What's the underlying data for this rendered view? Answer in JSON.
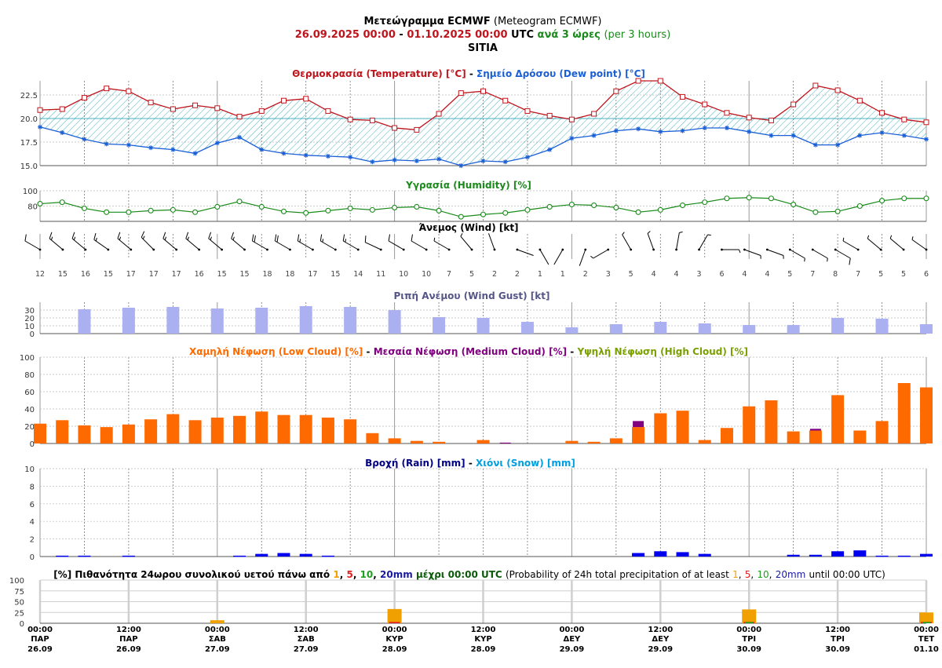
{
  "header": {
    "line1_bold": "Μετεώγραμμα ECMWF",
    "line1_rest": "(Meteogram ECMWF)",
    "date_start": "26.09.2025 00:00",
    "date_sep": "-",
    "date_end": "01.10.2025 00:00",
    "utc": "UTC",
    "step_gr": "ανά 3 ώρες",
    "step_en": "(per 3 hours)",
    "location": "SITIA"
  },
  "colors": {
    "temperature": "#c0141c",
    "dewpoint": "#1a5fd6",
    "humidity": "#1a8a1a",
    "gust": "#aab0f0",
    "low_cloud": "#ff6a00",
    "medium_cloud": "#800080",
    "high_cloud": "#7aa000",
    "rain": "#0000ee",
    "snow": "#00a0e0",
    "prob1": "#f0a000",
    "prob5": "#e02020",
    "prob10": "#20a020",
    "prob20": "#1a1aa0",
    "hatch": "#1aa0b0"
  },
  "panels": {
    "temp": {
      "title_a": "Θερμοκρασία (Temperature) [°C]",
      "sep": "-",
      "title_b": "Σημείο Δρόσου (Dew point) [°C]"
    },
    "humidity": {
      "title": "Υγρασία (Humidity) [%]"
    },
    "wind": {
      "title": "Άνεμος (Wind) [kt]"
    },
    "gust": {
      "title": "Ριπή Ανέμου (Wind Gust) [kt]"
    },
    "cloud": {
      "title_low": "Χαμηλή Νέφωση (Low Cloud) [%]",
      "sep1": "-",
      "title_med": "Μεσαία Νέφωση (Medium Cloud) [%]",
      "sep2": "-",
      "title_high": "Υψηλή Νέφωση (High Cloud) [%]"
    },
    "precip": {
      "title_rain": "Βροχή (Rain) [mm]",
      "sep": "-",
      "title_snow": "Χιόνι (Snow) [mm]"
    },
    "prob": {
      "p0": "[%] Πιθανότητα 24ωρου συνολικού υετού πάνω από",
      "v1": "1",
      "c1": ",",
      "v5": "5",
      "c2": ",",
      "v10": "10",
      "c3": ",",
      "v20": "20mm",
      "p1": "μέχρι 00:00 UTC",
      "p2": "(Probability of 24h total precipitation of at least",
      "e1": "1",
      "ec1": ",",
      "e5": "5",
      "ec2": ",",
      "e10": "10",
      "ec3": ",",
      "e20": "20mm",
      "p3": "until 00:00 UTC)"
    }
  },
  "chart_data": {
    "type": "line",
    "x_times": [
      "26.09 00",
      "26.09 03",
      "26.09 06",
      "26.09 09",
      "26.09 12",
      "26.09 15",
      "26.09 18",
      "26.09 21",
      "27.09 00",
      "27.09 03",
      "27.09 06",
      "27.09 09",
      "27.09 12",
      "27.09 15",
      "27.09 18",
      "27.09 21",
      "28.09 00",
      "28.09 03",
      "28.09 06",
      "28.09 09",
      "28.09 12",
      "28.09 15",
      "28.09 18",
      "28.09 21",
      "29.09 00",
      "29.09 03",
      "29.09 06",
      "29.09 09",
      "29.09 12",
      "29.09 15",
      "29.09 18",
      "29.09 21",
      "30.09 00",
      "30.09 03",
      "30.09 06",
      "30.09 09",
      "30.09 12",
      "30.09 15",
      "30.09 18",
      "30.09 21",
      "01.10 00"
    ],
    "temperature": {
      "ylim": [
        15,
        24
      ],
      "yticks": [
        "15.0",
        "17.5",
        "20.0",
        "22.5"
      ],
      "values": [
        20.9,
        21.0,
        22.2,
        23.2,
        22.9,
        21.7,
        21.0,
        21.4,
        21.1,
        20.2,
        20.8,
        21.9,
        22.1,
        20.8,
        19.9,
        19.8,
        19.0,
        18.8,
        20.5,
        22.7,
        22.9,
        21.9,
        20.8,
        20.3,
        19.9,
        20.5,
        22.9,
        24.0,
        24.0,
        22.3,
        21.5,
        20.6,
        20.1,
        19.8,
        21.5,
        23.5,
        23.0,
        21.9,
        20.6,
        19.9,
        19.6
      ]
    },
    "dewpoint": {
      "values": [
        19.1,
        18.5,
        17.8,
        17.3,
        17.2,
        16.9,
        16.7,
        16.3,
        17.4,
        18.0,
        16.7,
        16.3,
        16.1,
        16.0,
        15.9,
        15.4,
        15.6,
        15.5,
        15.7,
        15.0,
        15.5,
        15.4,
        15.9,
        16.7,
        17.9,
        18.2,
        18.7,
        18.9,
        18.6,
        18.7,
        19.0,
        19.0,
        18.6,
        18.2,
        18.2,
        17.2,
        17.2,
        18.2,
        18.5,
        18.2,
        17.8
      ]
    },
    "humidity": {
      "ylim": [
        60,
        100
      ],
      "yticks": [
        "80",
        "100"
      ],
      "values": [
        83,
        85,
        77,
        72,
        72,
        74,
        75,
        72,
        79,
        86,
        79,
        73,
        71,
        74,
        77,
        75,
        78,
        79,
        74,
        66,
        69,
        71,
        75,
        79,
        82,
        81,
        78,
        72,
        75,
        81,
        85,
        90,
        91,
        90,
        82,
        72,
        73,
        80,
        87,
        90,
        90
      ]
    },
    "wind": {
      "speeds": [
        "12",
        "15",
        "16",
        "15",
        "17",
        "17",
        "17",
        "16",
        "15",
        "15",
        "18",
        "18",
        "17",
        "15",
        "14",
        "11",
        "10",
        "10",
        "7",
        "5",
        "2",
        "2",
        "1",
        "1",
        "2",
        "3",
        "5",
        "4",
        "4",
        "3",
        "6",
        "4",
        "4",
        "5",
        "7",
        "8",
        "7",
        "5",
        "5",
        "6"
      ],
      "directions_deg": [
        300,
        310,
        310,
        305,
        310,
        315,
        310,
        310,
        310,
        310,
        300,
        300,
        300,
        300,
        300,
        295,
        300,
        300,
        300,
        320,
        340,
        110,
        150,
        210,
        200,
        240,
        330,
        340,
        10,
        30,
        90,
        110,
        110,
        120,
        120,
        120,
        300,
        310,
        310,
        305
      ]
    },
    "wind_gust": {
      "ylim": [
        0,
        40
      ],
      "yticks": [
        "0",
        "10",
        "20",
        "30"
      ],
      "values": [
        31,
        33,
        34,
        32,
        33,
        35,
        34,
        30,
        21,
        20,
        15,
        8,
        12,
        15,
        13,
        11,
        11,
        20,
        19,
        12
      ]
    },
    "low_cloud": {
      "ylim": [
        0,
        100
      ],
      "yticks": [
        "0",
        "20",
        "40",
        "60",
        "80",
        "100"
      ],
      "values": [
        23,
        27,
        21,
        19,
        22,
        28,
        34,
        27,
        30,
        32,
        37,
        33,
        33,
        30,
        28,
        12,
        6,
        3,
        2,
        0,
        4,
        0,
        0,
        0,
        3,
        2,
        6,
        19,
        35,
        38,
        4,
        18,
        43,
        50,
        14,
        15,
        56,
        15,
        26,
        70,
        65
      ]
    },
    "medium_cloud": {
      "values": [
        0,
        0,
        0,
        0,
        0,
        0,
        0,
        0,
        0,
        0,
        0,
        0,
        0,
        0,
        0,
        0,
        0,
        0,
        0,
        0,
        0,
        1,
        0,
        0,
        0,
        0,
        0,
        26,
        0,
        0,
        0,
        0,
        0,
        0,
        0,
        17,
        0,
        0,
        0,
        0,
        0
      ]
    },
    "high_cloud": {
      "values": [
        0,
        0,
        0,
        0,
        0,
        0,
        0,
        0,
        0,
        0,
        0,
        0,
        0,
        0,
        0,
        0,
        0,
        0,
        0,
        0,
        0,
        0,
        0,
        0,
        0,
        0,
        0,
        0,
        0,
        0,
        0,
        0,
        0,
        0,
        0,
        0,
        0,
        0,
        0,
        0,
        0
      ]
    },
    "rain": {
      "ylim": [
        0,
        10
      ],
      "yticks": [
        "0",
        "2",
        "4",
        "6",
        "8",
        "10"
      ],
      "values": [
        0,
        0.1,
        0.1,
        0,
        0.1,
        0,
        0,
        0,
        0,
        0.1,
        0.3,
        0.4,
        0.3,
        0.1,
        0,
        0,
        0,
        0,
        0,
        0,
        0,
        0,
        0,
        0,
        0,
        0,
        0,
        0.4,
        0.6,
        0.5,
        0.3,
        0,
        0,
        0,
        0.2,
        0.2,
        0.6,
        0.7,
        0.1,
        0.1,
        0.3
      ]
    },
    "snow": {
      "values": [
        0,
        0,
        0,
        0,
        0,
        0,
        0,
        0,
        0,
        0,
        0,
        0,
        0,
        0,
        0,
        0,
        0,
        0,
        0,
        0,
        0,
        0,
        0,
        0,
        0,
        0,
        0,
        0,
        0,
        0,
        0,
        0,
        0,
        0,
        0,
        0,
        0,
        0,
        0,
        0,
        0
      ]
    },
    "precip_probability": {
      "ylim": [
        0,
        100
      ],
      "yticks": [
        "0",
        "25",
        "50",
        "75",
        "100"
      ],
      "days": [
        "27.09",
        "28.09",
        "30.09",
        "01.10"
      ],
      "day_index": [
        2,
        4,
        8,
        10
      ],
      "p1mm": [
        7,
        33,
        32,
        25
      ],
      "p5mm": [
        0,
        3,
        3,
        3
      ],
      "p10mm": [
        0,
        0,
        3,
        3
      ],
      "p20mm": [
        0,
        0,
        0,
        0
      ]
    },
    "x_labels": [
      {
        "time": "00:00",
        "day": "ΠΑΡ",
        "date": "26.09"
      },
      {
        "time": "12:00",
        "day": "ΠΑΡ",
        "date": "26.09"
      },
      {
        "time": "00:00",
        "day": "ΣΑΒ",
        "date": "27.09"
      },
      {
        "time": "12:00",
        "day": "ΣΑΒ",
        "date": "27.09"
      },
      {
        "time": "00:00",
        "day": "ΚΥΡ",
        "date": "28.09"
      },
      {
        "time": "12:00",
        "day": "ΚΥΡ",
        "date": "28.09"
      },
      {
        "time": "00:00",
        "day": "ΔΕΥ",
        "date": "29.09"
      },
      {
        "time": "12:00",
        "day": "ΔΕΥ",
        "date": "29.09"
      },
      {
        "time": "00:00",
        "day": "ΤΡΙ",
        "date": "30.09"
      },
      {
        "time": "12:00",
        "day": "ΤΡΙ",
        "date": "30.09"
      },
      {
        "time": "00:00",
        "day": "ΤΕΤ",
        "date": "01.10"
      }
    ]
  }
}
